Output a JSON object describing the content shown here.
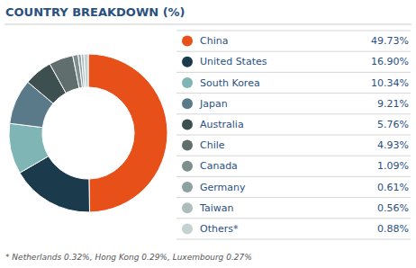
{
  "chart_data": {
    "type": "donut",
    "title": "COUNTRY BREAKDOWN (%)",
    "footnote": "* Netherlands 0.32%, Hong Kong 0.29%, Luxembourg 0.27%",
    "categories": [
      "China",
      "United States",
      "South Korea",
      "Japan",
      "Australia",
      "Chile",
      "Canada",
      "Germany",
      "Taiwan",
      "Others*"
    ],
    "values": [
      49.73,
      16.9,
      10.34,
      9.21,
      5.76,
      4.93,
      1.09,
      0.61,
      0.56,
      0.88
    ],
    "value_labels": [
      "49.73%",
      "16.90%",
      "10.34%",
      "9.21%",
      "5.76%",
      "4.93%",
      "1.09%",
      "0.61%",
      "0.56%",
      "0.88%"
    ],
    "colors": [
      "#E8501A",
      "#1B3A4B",
      "#7FB5B5",
      "#5A7A8A",
      "#3D4F4F",
      "#606E6E",
      "#7D8E8E",
      "#8FA0A0",
      "#ADBDBD",
      "#C5D2D2"
    ],
    "legend": "right"
  }
}
